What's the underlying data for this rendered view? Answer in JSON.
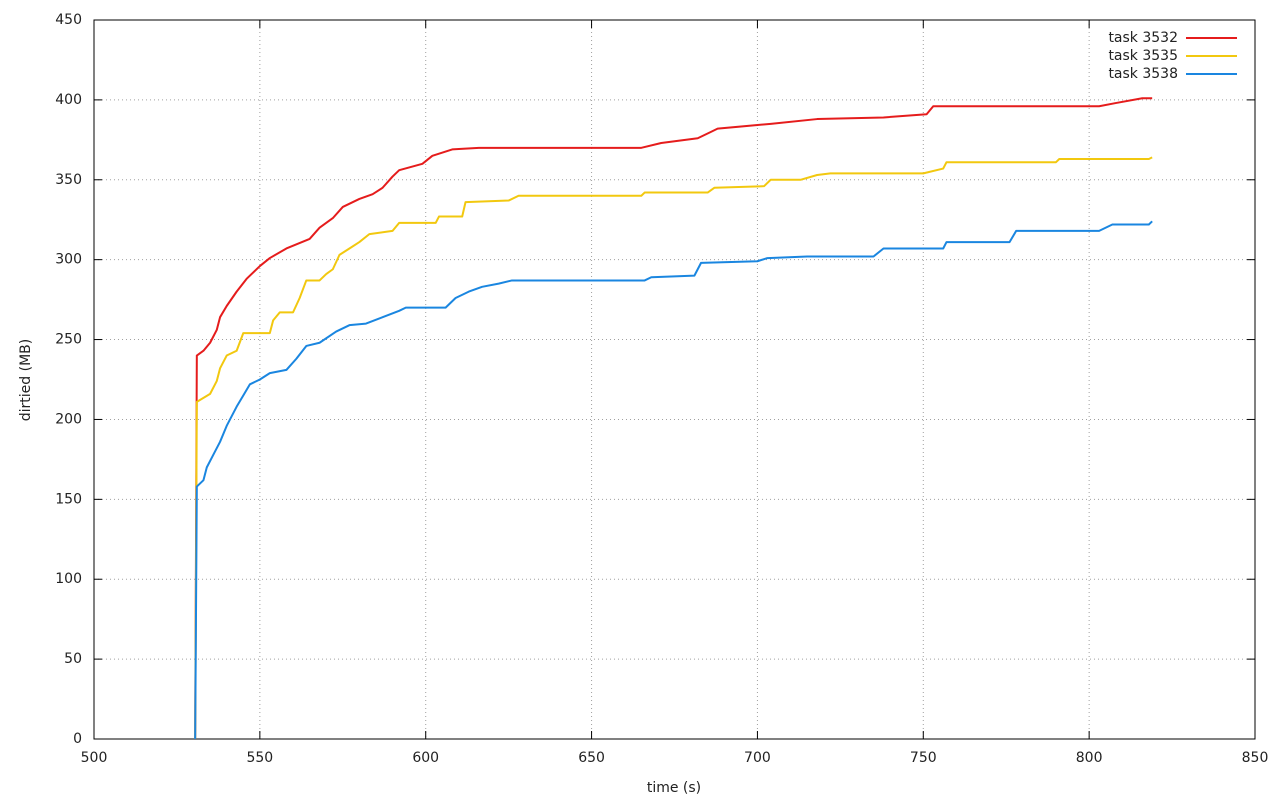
{
  "chart_data": {
    "type": "line",
    "xlabel": "time (s)",
    "ylabel": "dirtied (MB)",
    "xlim": [
      500,
      850
    ],
    "xticks": [
      500,
      550,
      600,
      650,
      700,
      750,
      800,
      850
    ],
    "ylim": [
      0,
      450
    ],
    "yticks": [
      0,
      50,
      100,
      150,
      200,
      250,
      300,
      350,
      400,
      450
    ],
    "grid": true,
    "legend": "top-right",
    "series": [
      {
        "name": "task 3532",
        "color": "#e51c1c",
        "x": [
          530.5,
          531,
          533,
          535,
          537,
          538,
          540,
          543,
          546,
          550,
          553,
          558,
          565,
          568,
          572,
          575,
          580,
          584,
          587,
          590,
          592,
          599,
          602,
          608,
          616,
          665,
          671,
          682,
          686,
          688,
          704,
          718,
          738,
          751,
          753,
          803,
          808,
          816,
          819
        ],
        "values": [
          0,
          240,
          243,
          248,
          256,
          264,
          271,
          280,
          288,
          296,
          301,
          307,
          313,
          320,
          326,
          333,
          338,
          341,
          345,
          352,
          356,
          360,
          365,
          369,
          370,
          370,
          373,
          376,
          380,
          382,
          385,
          388,
          389,
          391,
          396,
          396,
          398,
          401,
          401
        ]
      },
      {
        "name": "task 3535",
        "color": "#f2c80f",
        "x": [
          530.5,
          531,
          535,
          537,
          538,
          540,
          543,
          545,
          553,
          554,
          556,
          560,
          562,
          564,
          568,
          570,
          572,
          574,
          577,
          580,
          583,
          590,
          592,
          603,
          604,
          611,
          612,
          625,
          628,
          665,
          666,
          685,
          687,
          702,
          704,
          713,
          718,
          722,
          750,
          756,
          757,
          790,
          791,
          818,
          819
        ],
        "values": [
          0,
          211,
          216,
          224,
          232,
          240,
          243,
          254,
          254,
          262,
          267,
          267,
          276,
          287,
          287,
          291,
          294,
          303,
          307,
          311,
          316,
          318,
          323,
          323,
          327,
          327,
          336,
          337,
          340,
          340,
          342,
          342,
          345,
          346,
          350,
          350,
          353,
          354,
          354,
          357,
          361,
          361,
          363,
          363,
          364
        ]
      },
      {
        "name": "task 3538",
        "color": "#1a86e0",
        "x": [
          530.5,
          531,
          533,
          534,
          536,
          538,
          540,
          541,
          543,
          545,
          547,
          550,
          553,
          558,
          561,
          564,
          568,
          573,
          577,
          582,
          587,
          592,
          594,
          606,
          609,
          613,
          617,
          622,
          626,
          666,
          668,
          681,
          683,
          700,
          703,
          715,
          735,
          738,
          756,
          757,
          776,
          778,
          803,
          807,
          818,
          819
        ],
        "values": [
          0,
          158,
          162,
          170,
          178,
          186,
          196,
          200,
          208,
          215,
          222,
          225,
          229,
          231,
          238,
          246,
          248,
          255,
          259,
          260,
          264,
          268,
          270,
          270,
          276,
          280,
          283,
          285,
          287,
          287,
          289,
          290,
          298,
          299,
          301,
          302,
          302,
          307,
          307,
          311,
          311,
          318,
          318,
          322,
          322,
          324
        ]
      }
    ]
  }
}
